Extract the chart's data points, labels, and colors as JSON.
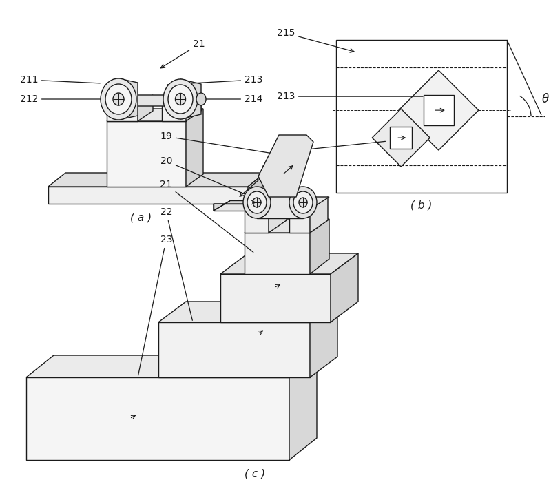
{
  "background": "#ffffff",
  "line_color": "#1a1a1a",
  "label_color": "#1a1a1a",
  "lw": 1.0,
  "subfig_a_label": "( a )",
  "subfig_b_label": "( b )",
  "subfig_c_label": "( c )"
}
